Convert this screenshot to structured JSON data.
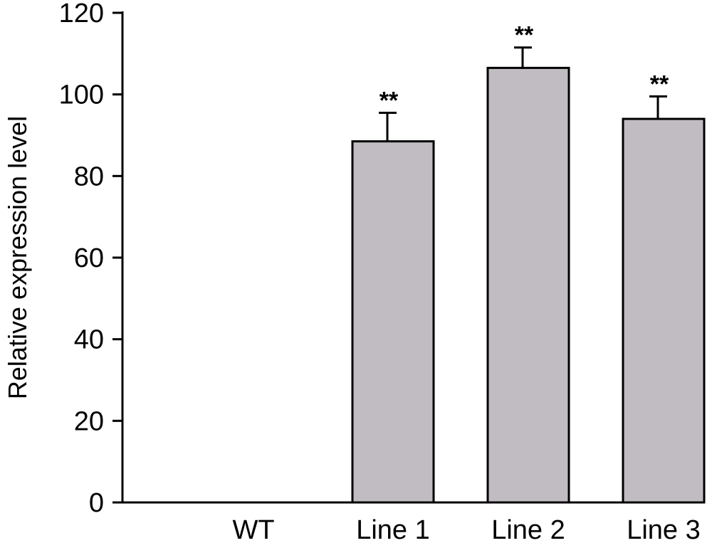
{
  "chart_data": {
    "type": "bar",
    "title": "",
    "xlabel": "",
    "ylabel": "Relative expression level",
    "ylim": [
      0,
      120
    ],
    "yticks": [
      0,
      20,
      40,
      60,
      80,
      100,
      120
    ],
    "categories": [
      "WT",
      "Line 1",
      "Line 2",
      "Line 3"
    ],
    "values": [
      0,
      88.5,
      106.5,
      94
    ],
    "errors": [
      0,
      7,
      5,
      5.5
    ],
    "annotations": [
      "",
      "**",
      "**",
      "**"
    ],
    "bar_color": "#c1bcc1",
    "grid": false,
    "legend": "none"
  }
}
